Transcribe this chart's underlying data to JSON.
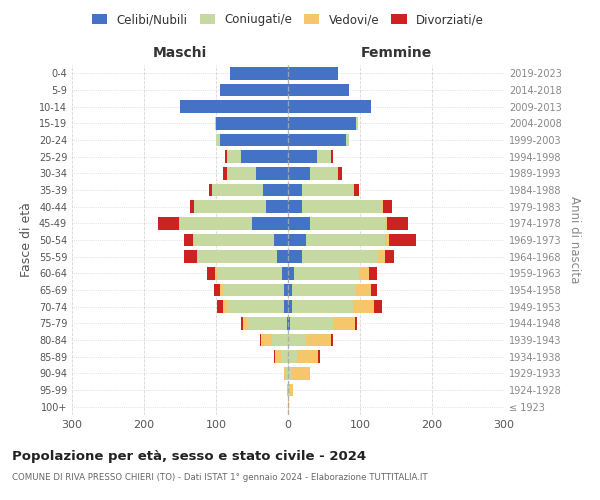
{
  "age_groups": [
    "100+",
    "95-99",
    "90-94",
    "85-89",
    "80-84",
    "75-79",
    "70-74",
    "65-69",
    "60-64",
    "55-59",
    "50-54",
    "45-49",
    "40-44",
    "35-39",
    "30-34",
    "25-29",
    "20-24",
    "15-19",
    "10-14",
    "5-9",
    "0-4"
  ],
  "birth_years": [
    "≤ 1923",
    "1924-1928",
    "1929-1933",
    "1934-1938",
    "1939-1943",
    "1944-1948",
    "1949-1953",
    "1954-1958",
    "1959-1963",
    "1964-1968",
    "1969-1973",
    "1974-1978",
    "1979-1983",
    "1984-1988",
    "1989-1993",
    "1994-1998",
    "1999-2003",
    "2004-2008",
    "2009-2013",
    "2014-2018",
    "2019-2023"
  ],
  "colors": {
    "celibe": "#4472C4",
    "coniugato": "#c5d9a0",
    "vedovo": "#f5c76a",
    "divorziato": "#cc2222"
  },
  "maschi": {
    "celibe": [
      0,
      0,
      0,
      0,
      0,
      2,
      5,
      5,
      8,
      15,
      20,
      50,
      30,
      35,
      45,
      65,
      95,
      100,
      150,
      95,
      80
    ],
    "coniugato": [
      0,
      1,
      3,
      10,
      22,
      55,
      80,
      85,
      90,
      110,
      110,
      100,
      100,
      70,
      40,
      20,
      5,
      2,
      0,
      0,
      0
    ],
    "vedovo": [
      0,
      0,
      3,
      8,
      15,
      5,
      5,
      5,
      3,
      2,
      2,
      2,
      1,
      0,
      0,
      0,
      0,
      0,
      0,
      0,
      0
    ],
    "divorziato": [
      0,
      0,
      0,
      2,
      2,
      3,
      8,
      8,
      12,
      18,
      12,
      28,
      5,
      5,
      5,
      3,
      0,
      0,
      0,
      0,
      0
    ]
  },
  "femmine": {
    "nubile": [
      0,
      0,
      0,
      0,
      0,
      3,
      5,
      5,
      8,
      20,
      25,
      30,
      20,
      20,
      30,
      40,
      80,
      95,
      115,
      85,
      70
    ],
    "coniugata": [
      0,
      2,
      5,
      12,
      25,
      60,
      85,
      90,
      90,
      105,
      110,
      105,
      110,
      70,
      40,
      20,
      5,
      2,
      0,
      0,
      0
    ],
    "vedova": [
      1,
      5,
      25,
      30,
      35,
      30,
      30,
      20,
      15,
      10,
      5,
      3,
      2,
      1,
      0,
      0,
      0,
      0,
      0,
      0,
      0
    ],
    "divorziata": [
      0,
      0,
      0,
      2,
      2,
      3,
      10,
      8,
      10,
      12,
      38,
      28,
      12,
      8,
      5,
      3,
      0,
      0,
      0,
      0,
      0
    ]
  },
  "xlim": 300,
  "title": "Popolazione per età, sesso e stato civile - 2024",
  "subtitle": "COMUNE DI RIVA PRESSO CHIERI (TO) - Dati ISTAT 1° gennaio 2024 - Elaborazione TUTTITALIA.IT",
  "ylabel_left": "Fasce di età",
  "ylabel_right": "Anni di nascita",
  "xlabel_left": "Maschi",
  "xlabel_right": "Femmine",
  "background": "#ffffff",
  "grid_color": "#cccccc"
}
